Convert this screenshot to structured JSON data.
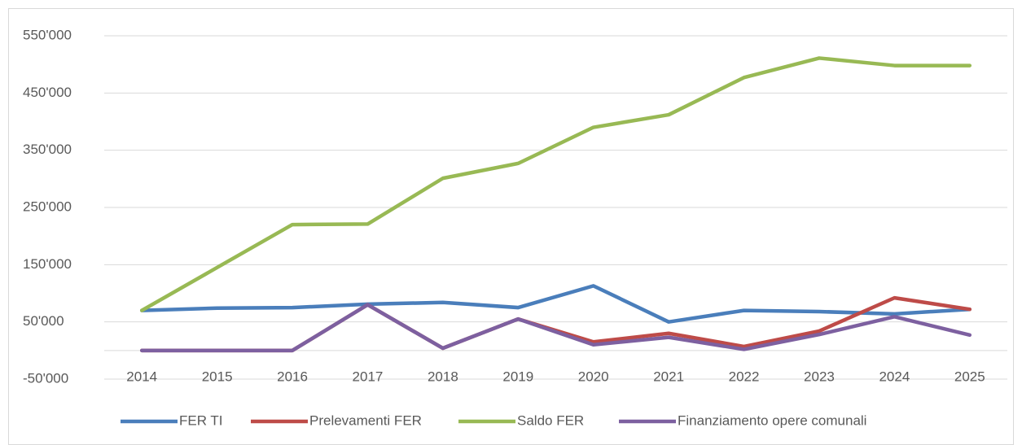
{
  "chart_data": {
    "type": "line",
    "categories": [
      "2014",
      "2015",
      "2016",
      "2017",
      "2018",
      "2019",
      "2020",
      "2021",
      "2022",
      "2023",
      "2024",
      "2025"
    ],
    "series": [
      {
        "name": "FER TI",
        "color": "#4a7ebb",
        "values": [
          70000,
          74000,
          75000,
          81000,
          84000,
          75000,
          113000,
          50000,
          70000,
          68000,
          64000,
          72000
        ]
      },
      {
        "name": "Prelevamenti FER",
        "color": "#be4b48",
        "values": [
          0,
          0,
          0,
          80000,
          4000,
          55000,
          15000,
          30000,
          7000,
          34000,
          92000,
          72000
        ]
      },
      {
        "name": "Saldo FER",
        "color": "#98b954",
        "values": [
          70000,
          145000,
          220000,
          221000,
          301000,
          327000,
          390000,
          412000,
          477000,
          511000,
          498000,
          498000
        ]
      },
      {
        "name": "Finanziamento opere comunali",
        "color": "#7d60a0",
        "values": [
          0,
          0,
          0,
          80000,
          4000,
          55000,
          10000,
          23000,
          2000,
          28000,
          59000,
          27000
        ]
      }
    ],
    "ylim": [
      -50000,
      550000
    ],
    "yticks": [
      {
        "value": -50000,
        "label": "-50'000"
      },
      {
        "value": 50000,
        "label": "50'000"
      },
      {
        "value": 150000,
        "label": "150'000"
      },
      {
        "value": 250000,
        "label": "250'000"
      },
      {
        "value": 350000,
        "label": "350'000"
      },
      {
        "value": 450000,
        "label": "450'000"
      },
      {
        "value": 550000,
        "label": "550'000"
      }
    ],
    "grid": true,
    "legend": "bottom"
  }
}
